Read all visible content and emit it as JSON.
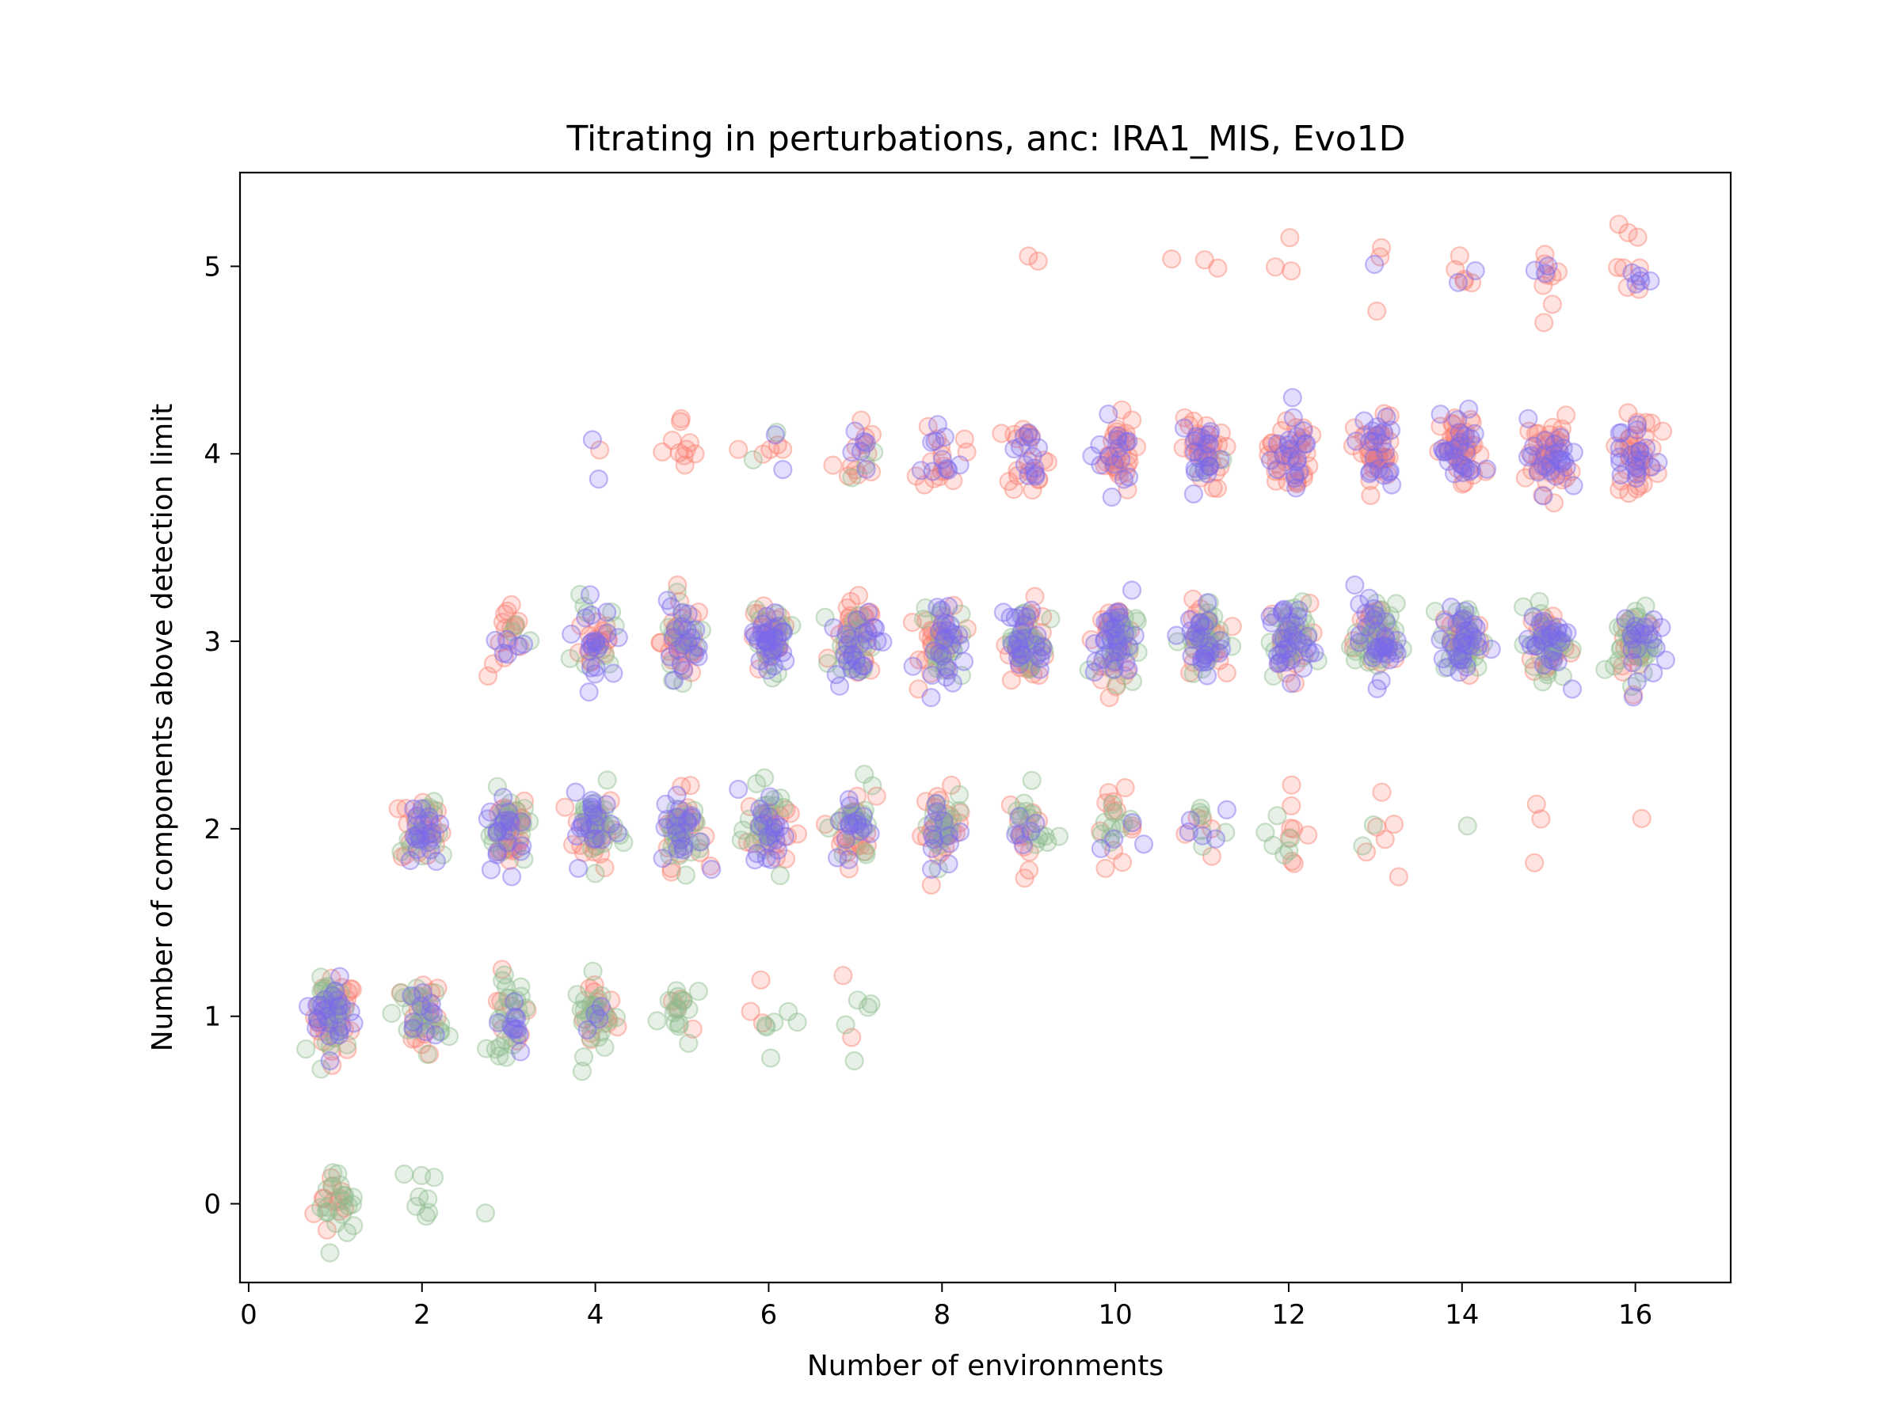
{
  "chart_data": {
    "type": "scatter",
    "title": "Titrating in perturbations, anc: IRA1_MIS, Evo1D",
    "xlabel": "Number of environments",
    "ylabel": "Number of components above detection limit",
    "xlim": [
      -0.1,
      17.1
    ],
    "ylim": [
      -0.42,
      5.5
    ],
    "xticks": [
      0,
      2,
      4,
      6,
      8,
      10,
      12,
      14,
      16
    ],
    "yticks": [
      0,
      1,
      2,
      3,
      4,
      5
    ],
    "grid": false,
    "legend": "none",
    "marker": "hollow circle, alpha ~0.3, with x/y jitter",
    "series": [
      {
        "color": "#fa8072",
        "clusters": [
          {
            "x": 1,
            "y": 0,
            "n": 12
          },
          {
            "x": 1,
            "y": 1,
            "n": 35
          },
          {
            "x": 2,
            "y": 1,
            "n": 20
          },
          {
            "x": 3,
            "y": 1,
            "n": 8
          },
          {
            "x": 4,
            "y": 1,
            "n": 15
          },
          {
            "x": 5,
            "y": 1,
            "n": 4
          },
          {
            "x": 6,
            "y": 1,
            "n": 3
          },
          {
            "x": 7,
            "y": 1,
            "n": 2
          },
          {
            "x": 2,
            "y": 2,
            "n": 25
          },
          {
            "x": 3,
            "y": 2,
            "n": 30
          },
          {
            "x": 4,
            "y": 2,
            "n": 25
          },
          {
            "x": 5,
            "y": 2,
            "n": 25
          },
          {
            "x": 6,
            "y": 2,
            "n": 25
          },
          {
            "x": 7,
            "y": 2,
            "n": 20
          },
          {
            "x": 8,
            "y": 2,
            "n": 25
          },
          {
            "x": 9,
            "y": 2,
            "n": 12
          },
          {
            "x": 10,
            "y": 2,
            "n": 12
          },
          {
            "x": 11,
            "y": 2,
            "n": 5
          },
          {
            "x": 12,
            "y": 2,
            "n": 8
          },
          {
            "x": 13,
            "y": 2,
            "n": 6
          },
          {
            "x": 15,
            "y": 2,
            "n": 3
          },
          {
            "x": 16,
            "y": 2,
            "n": 1
          },
          {
            "x": 3,
            "y": 3,
            "n": 15
          },
          {
            "x": 4,
            "y": 3,
            "n": 20
          },
          {
            "x": 5,
            "y": 3,
            "n": 30
          },
          {
            "x": 6,
            "y": 3,
            "n": 25
          },
          {
            "x": 7,
            "y": 3,
            "n": 30
          },
          {
            "x": 8,
            "y": 3,
            "n": 30
          },
          {
            "x": 9,
            "y": 3,
            "n": 30
          },
          {
            "x": 10,
            "y": 3,
            "n": 30
          },
          {
            "x": 11,
            "y": 3,
            "n": 25
          },
          {
            "x": 12,
            "y": 3,
            "n": 20
          },
          {
            "x": 13,
            "y": 3,
            "n": 25
          },
          {
            "x": 14,
            "y": 3,
            "n": 25
          },
          {
            "x": 15,
            "y": 3,
            "n": 25
          },
          {
            "x": 16,
            "y": 3,
            "n": 20
          },
          {
            "x": 4,
            "y": 4,
            "n": 1
          },
          {
            "x": 5,
            "y": 4,
            "n": 10
          },
          {
            "x": 6,
            "y": 4,
            "n": 5
          },
          {
            "x": 7,
            "y": 4,
            "n": 12
          },
          {
            "x": 8,
            "y": 4,
            "n": 15
          },
          {
            "x": 9,
            "y": 4,
            "n": 20
          },
          {
            "x": 10,
            "y": 4,
            "n": 30
          },
          {
            "x": 11,
            "y": 4,
            "n": 30
          },
          {
            "x": 12,
            "y": 4,
            "n": 35
          },
          {
            "x": 13,
            "y": 4,
            "n": 35
          },
          {
            "x": 14,
            "y": 4,
            "n": 40
          },
          {
            "x": 15,
            "y": 4,
            "n": 40
          },
          {
            "x": 16,
            "y": 4,
            "n": 35
          },
          {
            "x": 9,
            "y": 5,
            "n": 2
          },
          {
            "x": 11,
            "y": 5,
            "n": 3
          },
          {
            "x": 12,
            "y": 5,
            "n": 3
          },
          {
            "x": 13,
            "y": 5,
            "n": 3
          },
          {
            "x": 14,
            "y": 5,
            "n": 5
          },
          {
            "x": 15,
            "y": 5,
            "n": 8
          },
          {
            "x": 16,
            "y": 5,
            "n": 8
          }
        ]
      },
      {
        "color": "#7b68ee",
        "clusters": [
          {
            "x": 1,
            "y": 1,
            "n": 25
          },
          {
            "x": 2,
            "y": 1,
            "n": 10
          },
          {
            "x": 3,
            "y": 1,
            "n": 10
          },
          {
            "x": 4,
            "y": 1,
            "n": 4
          },
          {
            "x": 2,
            "y": 2,
            "n": 20
          },
          {
            "x": 3,
            "y": 2,
            "n": 20
          },
          {
            "x": 4,
            "y": 2,
            "n": 20
          },
          {
            "x": 5,
            "y": 2,
            "n": 20
          },
          {
            "x": 6,
            "y": 2,
            "n": 20
          },
          {
            "x": 7,
            "y": 2,
            "n": 15
          },
          {
            "x": 8,
            "y": 2,
            "n": 12
          },
          {
            "x": 9,
            "y": 2,
            "n": 6
          },
          {
            "x": 10,
            "y": 2,
            "n": 4
          },
          {
            "x": 11,
            "y": 2,
            "n": 5
          },
          {
            "x": 3,
            "y": 3,
            "n": 6
          },
          {
            "x": 4,
            "y": 3,
            "n": 20
          },
          {
            "x": 5,
            "y": 3,
            "n": 20
          },
          {
            "x": 6,
            "y": 3,
            "n": 30
          },
          {
            "x": 7,
            "y": 3,
            "n": 25
          },
          {
            "x": 8,
            "y": 3,
            "n": 25
          },
          {
            "x": 9,
            "y": 3,
            "n": 25
          },
          {
            "x": 10,
            "y": 3,
            "n": 30
          },
          {
            "x": 11,
            "y": 3,
            "n": 25
          },
          {
            "x": 12,
            "y": 3,
            "n": 30
          },
          {
            "x": 13,
            "y": 3,
            "n": 30
          },
          {
            "x": 14,
            "y": 3,
            "n": 30
          },
          {
            "x": 15,
            "y": 3,
            "n": 25
          },
          {
            "x": 16,
            "y": 3,
            "n": 20
          },
          {
            "x": 4,
            "y": 4,
            "n": 2
          },
          {
            "x": 6,
            "y": 4,
            "n": 2
          },
          {
            "x": 7,
            "y": 4,
            "n": 6
          },
          {
            "x": 8,
            "y": 4,
            "n": 10
          },
          {
            "x": 9,
            "y": 4,
            "n": 12
          },
          {
            "x": 10,
            "y": 4,
            "n": 15
          },
          {
            "x": 11,
            "y": 4,
            "n": 20
          },
          {
            "x": 12,
            "y": 4,
            "n": 20
          },
          {
            "x": 13,
            "y": 4,
            "n": 20
          },
          {
            "x": 14,
            "y": 4,
            "n": 25
          },
          {
            "x": 15,
            "y": 4,
            "n": 25
          },
          {
            "x": 16,
            "y": 4,
            "n": 20
          },
          {
            "x": 13,
            "y": 5,
            "n": 1
          },
          {
            "x": 14,
            "y": 5,
            "n": 2
          },
          {
            "x": 15,
            "y": 5,
            "n": 3
          },
          {
            "x": 16,
            "y": 5,
            "n": 5
          }
        ]
      },
      {
        "color": "#8fbc8f",
        "clusters": [
          {
            "x": 1,
            "y": 0,
            "n": 20
          },
          {
            "x": 2,
            "y": 0,
            "n": 8
          },
          {
            "x": 3,
            "y": 0,
            "n": 1
          },
          {
            "x": 1,
            "y": 1,
            "n": 30
          },
          {
            "x": 2,
            "y": 1,
            "n": 25
          },
          {
            "x": 3,
            "y": 1,
            "n": 25
          },
          {
            "x": 4,
            "y": 1,
            "n": 25
          },
          {
            "x": 5,
            "y": 1,
            "n": 15
          },
          {
            "x": 6,
            "y": 1,
            "n": 6
          },
          {
            "x": 7,
            "y": 1,
            "n": 5
          },
          {
            "x": 2,
            "y": 2,
            "n": 15
          },
          {
            "x": 3,
            "y": 2,
            "n": 20
          },
          {
            "x": 4,
            "y": 2,
            "n": 25
          },
          {
            "x": 5,
            "y": 2,
            "n": 25
          },
          {
            "x": 6,
            "y": 2,
            "n": 25
          },
          {
            "x": 7,
            "y": 2,
            "n": 20
          },
          {
            "x": 8,
            "y": 2,
            "n": 20
          },
          {
            "x": 9,
            "y": 2,
            "n": 15
          },
          {
            "x": 10,
            "y": 2,
            "n": 10
          },
          {
            "x": 11,
            "y": 2,
            "n": 6
          },
          {
            "x": 12,
            "y": 2,
            "n": 6
          },
          {
            "x": 13,
            "y": 2,
            "n": 2
          },
          {
            "x": 14,
            "y": 2,
            "n": 1
          },
          {
            "x": 3,
            "y": 3,
            "n": 3
          },
          {
            "x": 4,
            "y": 3,
            "n": 10
          },
          {
            "x": 5,
            "y": 3,
            "n": 15
          },
          {
            "x": 6,
            "y": 3,
            "n": 15
          },
          {
            "x": 7,
            "y": 3,
            "n": 20
          },
          {
            "x": 8,
            "y": 3,
            "n": 20
          },
          {
            "x": 9,
            "y": 3,
            "n": 25
          },
          {
            "x": 10,
            "y": 3,
            "n": 25
          },
          {
            "x": 11,
            "y": 3,
            "n": 25
          },
          {
            "x": 12,
            "y": 3,
            "n": 25
          },
          {
            "x": 13,
            "y": 3,
            "n": 30
          },
          {
            "x": 14,
            "y": 3,
            "n": 30
          },
          {
            "x": 15,
            "y": 3,
            "n": 30
          },
          {
            "x": 16,
            "y": 3,
            "n": 30
          },
          {
            "x": 6,
            "y": 4,
            "n": 2
          },
          {
            "x": 7,
            "y": 4,
            "n": 3
          },
          {
            "x": 11,
            "y": 4,
            "n": 3
          }
        ]
      }
    ]
  }
}
